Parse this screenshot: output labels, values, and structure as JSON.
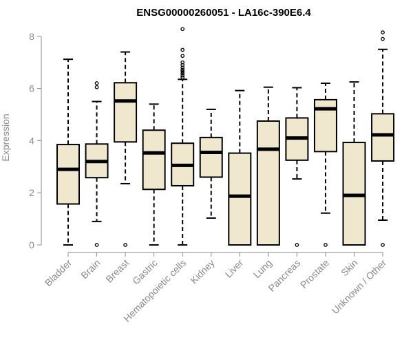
{
  "chart_data": {
    "type": "box",
    "title": "ENSG00000260051 - LA16c-390E6.4",
    "xlabel": "",
    "ylabel": "Expression",
    "ylim": [
      0,
      8.3
    ],
    "yticks": [
      0,
      2,
      4,
      6,
      8
    ],
    "grid": false,
    "series": [
      {
        "name": "Bladder",
        "min": 0,
        "q1": 1.57,
        "median": 2.9,
        "q3": 3.85,
        "max": 7.12,
        "outliers": []
      },
      {
        "name": "Brain",
        "min": 0.9,
        "q1": 2.58,
        "median": 3.2,
        "q3": 3.87,
        "max": 5.5,
        "outliers": [
          0,
          6.05,
          6.2
        ]
      },
      {
        "name": "Breast",
        "min": 2.35,
        "q1": 3.95,
        "median": 5.52,
        "q3": 6.22,
        "max": 7.4,
        "outliers": [
          0
        ]
      },
      {
        "name": "Gastric",
        "min": 0,
        "q1": 2.13,
        "median": 3.53,
        "q3": 4.4,
        "max": 5.4,
        "outliers": []
      },
      {
        "name": "Hematopoietic cells",
        "min": 0,
        "q1": 2.27,
        "median": 3.05,
        "q3": 3.9,
        "max": 6.35,
        "outliers": [
          6.42,
          6.5,
          6.58,
          6.65,
          6.72,
          6.8,
          6.9,
          7.0,
          7.25,
          7.48,
          8.28
        ]
      },
      {
        "name": "Kidney",
        "min": 1.03,
        "q1": 2.6,
        "median": 3.55,
        "q3": 4.12,
        "max": 5.2,
        "outliers": []
      },
      {
        "name": "Liver",
        "min": 0,
        "q1": 0,
        "median": 1.87,
        "q3": 3.52,
        "max": 5.92,
        "outliers": []
      },
      {
        "name": "Lung",
        "min": 0,
        "q1": 0,
        "median": 3.67,
        "q3": 4.75,
        "max": 6.05,
        "outliers": []
      },
      {
        "name": "Pancreas",
        "min": 2.53,
        "q1": 3.25,
        "median": 4.1,
        "q3": 4.87,
        "max": 6.03,
        "outliers": [
          0
        ]
      },
      {
        "name": "Prostate",
        "min": 1.22,
        "q1": 3.58,
        "median": 5.22,
        "q3": 5.57,
        "max": 6.2,
        "outliers": [
          0
        ]
      },
      {
        "name": "Skin",
        "min": 0,
        "q1": 0,
        "median": 1.9,
        "q3": 3.93,
        "max": 6.25,
        "outliers": []
      },
      {
        "name": "Unknown / Other",
        "min": 0.95,
        "q1": 3.22,
        "median": 4.22,
        "q3": 5.03,
        "max": 7.5,
        "outliers": [
          0,
          7.9,
          8.15
        ]
      }
    ]
  }
}
